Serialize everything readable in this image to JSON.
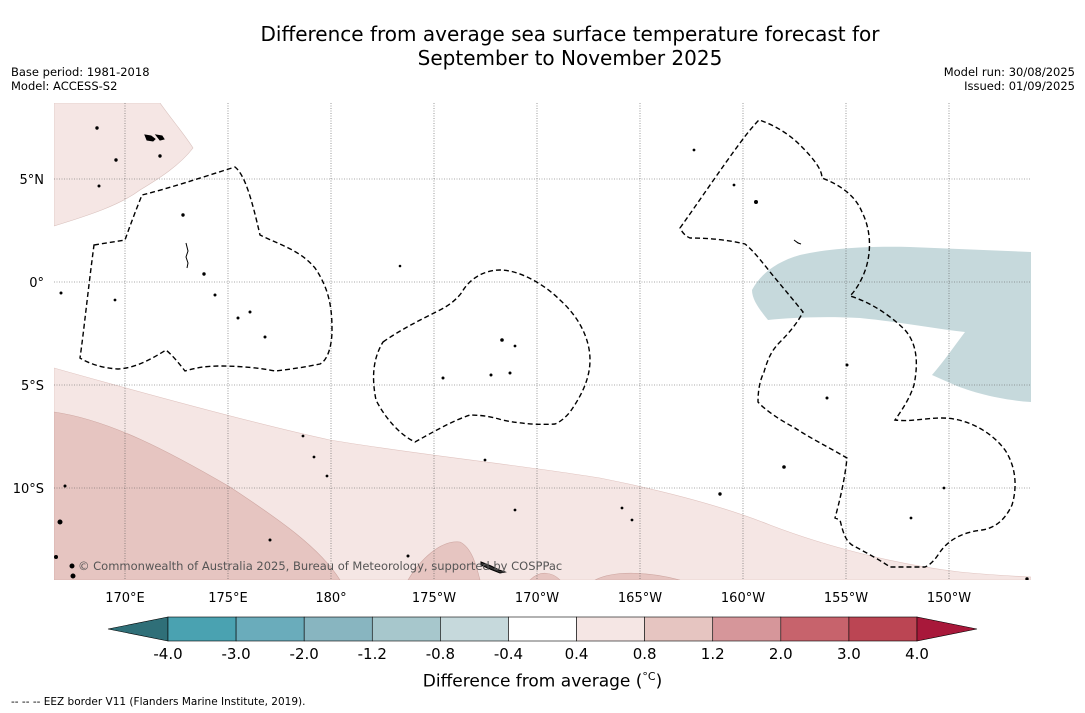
{
  "title_line1": "Difference from average sea surface temperature forecast for",
  "title_line2": "September to November 2025",
  "base_period": "Base period: 1981-2018",
  "model": "Model: ACCESS-S2",
  "model_run": "Model run: 30/08/2025",
  "issued": "Issued: 01/09/2025",
  "credit": "© Commonwealth of Australia 2025, Bureau of Meteorology, supported by COSPPac",
  "lat_labels": [
    "5°N",
    "0°",
    "5°S",
    "10°S"
  ],
  "lon_labels": [
    "170°E",
    "175°E",
    "180°",
    "175°W",
    "170°W",
    "165°W",
    "160°W",
    "155°W",
    "150°W"
  ],
  "colorbar": {
    "label": "Difference from average (°C)",
    "label_prefix": "Difference from average (",
    "label_unit": "°C",
    "label_suffix": ")",
    "ticks": [
      "-4.0",
      "-3.0",
      "-2.0",
      "-1.2",
      "-0.8",
      "-0.4",
      "0.4",
      "0.8",
      "1.2",
      "2.0",
      "3.0",
      "4.0"
    ],
    "colors": [
      "#2f6f78",
      "#4aa2b1",
      "#6aacbb",
      "#88b5c0",
      "#a7c7cc",
      "#c6d9dc",
      "#ffffff",
      "#f5e6e4",
      "#e6c5c1",
      "#d6969a",
      "#c7636c",
      "#bb4553",
      "#a8183a"
    ]
  },
  "legend_eez": "--  --  -- EEZ border V11 (Flanders Marine Institute, 2019)."
}
